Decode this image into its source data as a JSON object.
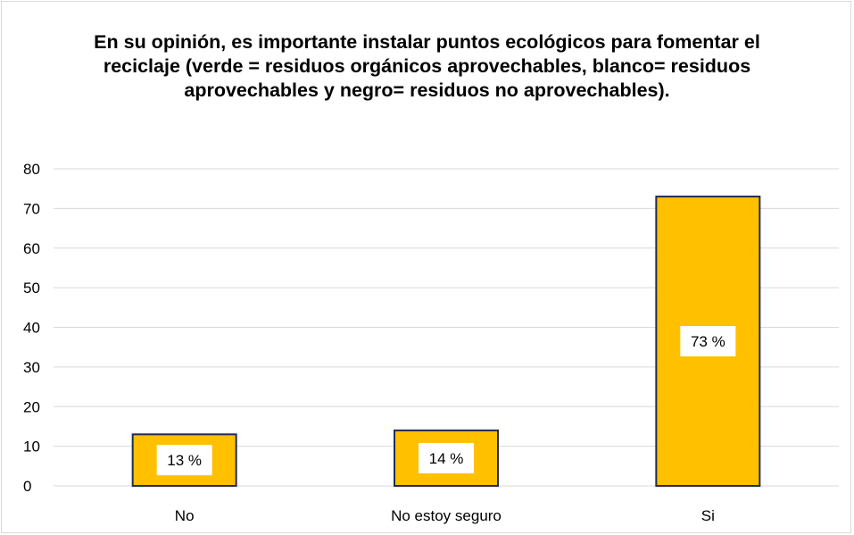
{
  "chart_data": {
    "type": "bar",
    "title": "En su opinión, es importante instalar puntos ecológicos para fomentar el reciclaje (verde = residuos orgánicos aprovechables, blanco= residuos aprovechables y negro= residuos no aprovechables).",
    "categories": [
      "No",
      "No estoy seguro",
      "Si"
    ],
    "values": [
      13,
      14,
      73
    ],
    "data_labels": [
      "13 %",
      "14 %",
      "73 %"
    ],
    "yticks": [
      "0",
      "10",
      "20",
      "30",
      "40",
      "50",
      "60",
      "70",
      "80"
    ],
    "ylim": [
      0,
      80
    ],
    "xlabel": "",
    "ylabel": "",
    "grid": true,
    "legend": "none",
    "colors": {
      "bar_fill": "#FFC000",
      "bar_stroke": "#1F2D4D",
      "grid": "#d9d9d9",
      "label_box": "#ffffff"
    }
  }
}
